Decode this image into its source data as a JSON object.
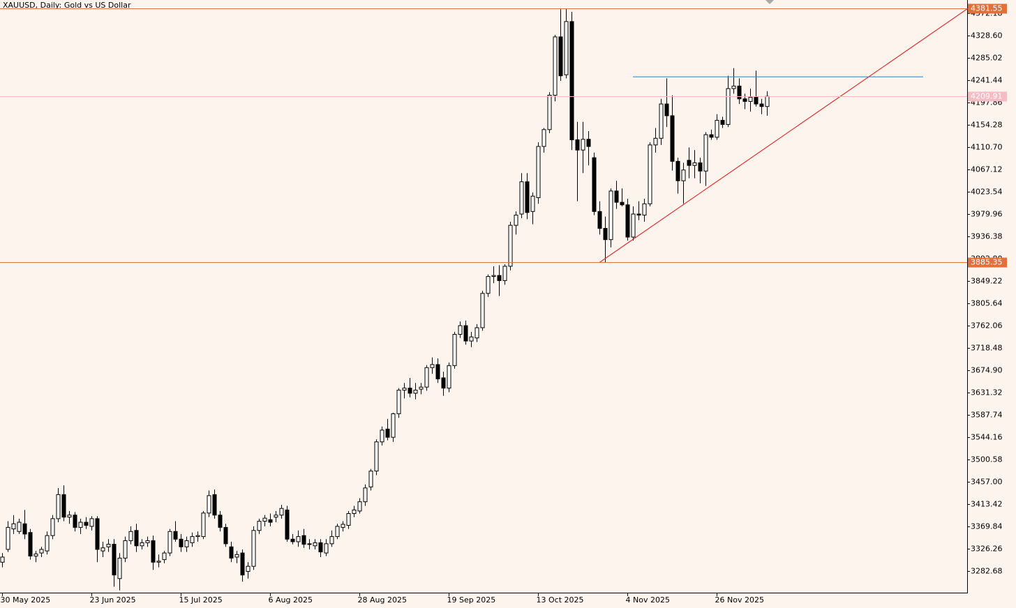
{
  "chart_data": {
    "type": "candlestick",
    "title": "XAUUSD, Daily:  Gold vs US Dollar",
    "categories": [
      "30 May 2025",
      null,
      null,
      null,
      null,
      null,
      null,
      null,
      null,
      null,
      null,
      null,
      null,
      null,
      null,
      null,
      "23 Jun 2025",
      null,
      null,
      null,
      null,
      null,
      null,
      null,
      null,
      null,
      null,
      null,
      null,
      null,
      null,
      null,
      "15 Jul 2025",
      null,
      null,
      null,
      null,
      null,
      null,
      null,
      null,
      null,
      null,
      null,
      null,
      null,
      null,
      null,
      "6 Aug 2025",
      null,
      null,
      null,
      null,
      null,
      null,
      null,
      null,
      null,
      null,
      null,
      null,
      null,
      null,
      null,
      "28 Aug 2025",
      null,
      null,
      null,
      null,
      null,
      null,
      null,
      null,
      null,
      null,
      null,
      null,
      null,
      null,
      null,
      "19 Sep 2025",
      null,
      null,
      null,
      null,
      null,
      null,
      null,
      null,
      null,
      null,
      null,
      null,
      null,
      null,
      null,
      "13 Oct 2025",
      null,
      null,
      null,
      null,
      null,
      null,
      null,
      null,
      null,
      null,
      null,
      null,
      null,
      null,
      null,
      "4 Nov 2025",
      null,
      null,
      null,
      null,
      null,
      null,
      null,
      null,
      null,
      null,
      null,
      null,
      null,
      null,
      null,
      "26 Nov 2025",
      null,
      null,
      null,
      null,
      null,
      null,
      null,
      null,
      null
    ],
    "open": [
      3300,
      3325,
      3365,
      3360,
      3375,
      3358,
      3312,
      3318,
      3322,
      3352,
      3385,
      3432,
      3388,
      3392,
      3368,
      3378,
      3370,
      3385,
      3322,
      3330,
      3335,
      3268,
      3308,
      3342,
      3362,
      3332,
      3338,
      3342,
      3300,
      3305,
      3318,
      3360,
      3345,
      3330,
      3338,
      3350,
      3350,
      3396,
      3432,
      3392,
      3368,
      3330,
      3310,
      3318,
      3282,
      3292,
      3362,
      3380,
      3383,
      3388,
      3392,
      3402,
      3345,
      3340,
      3352,
      3335,
      3332,
      3338,
      3318,
      3336,
      3350,
      3368,
      3372,
      3395,
      3400,
      3418,
      3447,
      3478,
      3535,
      3560,
      3544,
      3590,
      3636,
      3640,
      3630,
      3638,
      3642,
      3680,
      3686,
      3660,
      3640,
      3684,
      3745,
      3762,
      3732,
      3738,
      3758,
      3825,
      3858,
      3860,
      3850,
      3878,
      3958,
      3980,
      4043,
      3985,
      4012,
      4112,
      4145,
      4212,
      4326,
      4252,
      4356,
      4125,
      4105,
      4126,
      4090,
      3985,
      3952,
      3930,
      4025,
      4003,
      3998,
      3935,
      3980,
      3978,
      4000,
      4115,
      4128,
      4195,
      4172,
      4083,
      4045,
      4085,
      4075,
      4080,
      4064,
      4135,
      4130,
      4163,
      4155,
      4225,
      4230,
      4205,
      4200,
      4208,
      4195,
      4190
    ],
    "high": [
      3318,
      3380,
      3392,
      3385,
      3402,
      3365,
      3322,
      3330,
      3360,
      3392,
      3445,
      3450,
      3400,
      3398,
      3385,
      3388,
      3390,
      3390,
      3340,
      3345,
      3345,
      3318,
      3350,
      3370,
      3375,
      3345,
      3350,
      3352,
      3315,
      3322,
      3365,
      3380,
      3355,
      3350,
      3358,
      3360,
      3400,
      3440,
      3442,
      3400,
      3375,
      3340,
      3322,
      3325,
      3300,
      3370,
      3385,
      3392,
      3395,
      3400,
      3412,
      3410,
      3355,
      3362,
      3365,
      3345,
      3345,
      3345,
      3345,
      3362,
      3375,
      3380,
      3400,
      3410,
      3425,
      3452,
      3482,
      3540,
      3565,
      3580,
      3592,
      3640,
      3650,
      3660,
      3650,
      3650,
      3685,
      3700,
      3698,
      3672,
      3690,
      3750,
      3770,
      3772,
      3750,
      3765,
      3830,
      3862,
      3878,
      3880,
      3882,
      3965,
      3985,
      4060,
      4060,
      4022,
      4120,
      4148,
      4218,
      4330,
      4380,
      4381.55,
      4375,
      4160,
      4160,
      4142,
      4100,
      4005,
      3975,
      4030,
      4045,
      4030,
      4010,
      3995,
      4005,
      4010,
      4120,
      4148,
      4205,
      4245,
      4212,
      4090,
      4080,
      4110,
      4105,
      4090,
      4140,
      4145,
      4175,
      4170,
      4250,
      4265,
      4245,
      4215,
      4225,
      4260,
      4205,
      4220
    ],
    "low": [
      3290,
      3320,
      3355,
      3355,
      3345,
      3305,
      3300,
      3310,
      3315,
      3345,
      3378,
      3380,
      3375,
      3360,
      3355,
      3365,
      3362,
      3300,
      3310,
      3320,
      3252,
      3245,
      3300,
      3335,
      3320,
      3325,
      3330,
      3285,
      3290,
      3298,
      3312,
      3340,
      3320,
      3320,
      3330,
      3340,
      3345,
      3388,
      3385,
      3360,
      3330,
      3300,
      3298,
      3262,
      3268,
      3285,
      3355,
      3370,
      3370,
      3378,
      3385,
      3340,
      3335,
      3330,
      3328,
      3325,
      3325,
      3310,
      3312,
      3330,
      3345,
      3360,
      3365,
      3388,
      3395,
      3410,
      3440,
      3470,
      3528,
      3538,
      3535,
      3582,
      3620,
      3622,
      3618,
      3628,
      3635,
      3668,
      3650,
      3625,
      3632,
      3678,
      3738,
      3725,
      3720,
      3730,
      3752,
      3818,
      3845,
      3820,
      3842,
      3870,
      3940,
      3972,
      3970,
      3960,
      4000,
      4100,
      4138,
      4200,
      4240,
      4245,
      4105,
      4005,
      4060,
      4075,
      3978,
      3940,
      3885.35,
      3915,
      3990,
      3995,
      3928,
      3928,
      3968,
      3965,
      3995,
      4100,
      4115,
      4150,
      4065,
      4020,
      4000,
      4050,
      4050,
      4040,
      4035,
      4125,
      4125,
      4148,
      4150,
      4215,
      4195,
      4185,
      4180,
      4190,
      4175,
      4172
    ],
    "close": [
      3310,
      3368,
      3375,
      3378,
      3355,
      3312,
      3316,
      3325,
      3352,
      3385,
      3432,
      3388,
      3392,
      3368,
      3378,
      3372,
      3385,
      3325,
      3328,
      3335,
      3275,
      3308,
      3342,
      3360,
      3332,
      3338,
      3342,
      3300,
      3302,
      3318,
      3360,
      3345,
      3330,
      3342,
      3350,
      3352,
      3396,
      3430,
      3392,
      3368,
      3336,
      3308,
      3315,
      3275,
      3292,
      3362,
      3380,
      3386,
      3378,
      3392,
      3405,
      3345,
      3340,
      3350,
      3335,
      3336,
      3338,
      3320,
      3336,
      3350,
      3370,
      3374,
      3395,
      3402,
      3418,
      3445,
      3478,
      3535,
      3558,
      3544,
      3590,
      3636,
      3640,
      3630,
      3636,
      3642,
      3680,
      3686,
      3658,
      3640,
      3684,
      3745,
      3762,
      3732,
      3740,
      3758,
      3825,
      3858,
      3860,
      3850,
      3878,
      3958,
      3978,
      4043,
      3983,
      4015,
      4112,
      4145,
      4212,
      4326,
      4250,
      4356,
      4125,
      4105,
      4126,
      4112,
      3985,
      3952,
      3930,
      4025,
      4003,
      3998,
      3935,
      3980,
      3978,
      4000,
      4115,
      4128,
      4195,
      4172,
      4083,
      4045,
      4066,
      4075,
      4080,
      4064,
      4135,
      4130,
      4163,
      4155,
      4225,
      4230,
      4205,
      4200,
      4208,
      4195,
      4190,
      4209.91
    ],
    "up_color": "#ffffff",
    "down_color": "#000000",
    "ylim": [
      3240.49,
      4398.06
    ],
    "yticks": [
      4372.18,
      {
        "value": 4328.6,
        "label": "4328.60"
      },
      4285.02,
      4241.44,
      4197.86,
      4154.28,
      {
        "value": 4110.7,
        "label": "4110.70"
      },
      4067.12,
      4023.54,
      3979.96,
      3936.38,
      {
        "value": 3892.8,
        "label": "3892.80"
      },
      3849.22,
      3805.64,
      3762.06,
      3718.48,
      {
        "value": 3674.9,
        "label": "3674.90"
      },
      3631.32,
      3587.74,
      3544.16,
      3500.58,
      {
        "value": 3457,
        "label": "3457.00"
      },
      3413.42,
      3369.84,
      3326.26,
      3282.68
    ],
    "levels": [
      {
        "value": 4381.55,
        "color": "#e0703c"
      },
      {
        "value": 3885.35,
        "color": "#e0703c"
      },
      {
        "value": 4209.91,
        "color": "#f5bcc4"
      }
    ],
    "resistance": {
      "x": [
        113,
        165
      ],
      "value": 4248,
      "color": "#3a8fc8"
    },
    "trendline": {
      "x": [
        107,
        173
      ],
      "values": [
        3885.35,
        4381.55
      ],
      "color": "#e03030"
    }
  }
}
